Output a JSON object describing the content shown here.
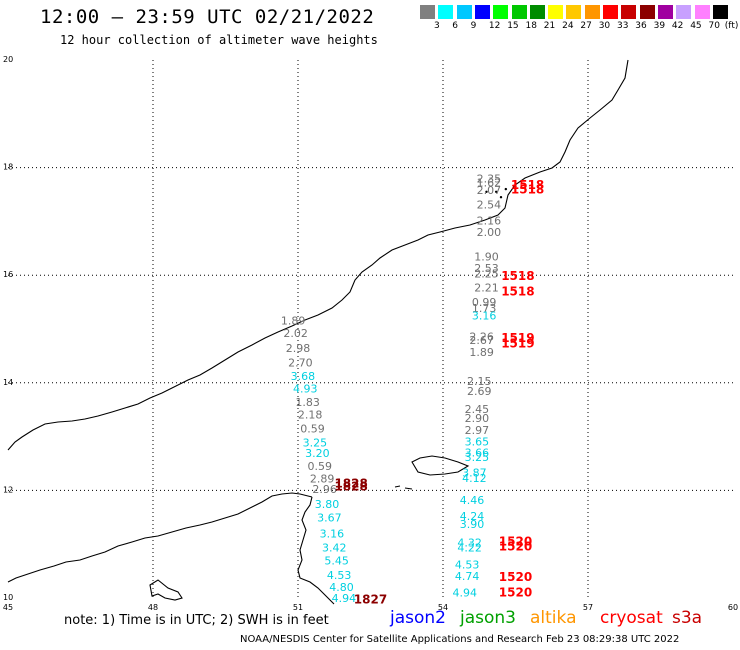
{
  "header": {
    "title": "12:00 — 23:59 UTC 02/21/2022",
    "subtitle": "12 hour collection of altimeter wave heights"
  },
  "legend": {
    "unit": "(ft)",
    "colors": [
      "#808080",
      "#00ffff",
      "#00c8ff",
      "#0000ff",
      "#00ff00",
      "#00c800",
      "#008c00",
      "#ffff00",
      "#ffc800",
      "#ff9600",
      "#ff0000",
      "#c80000",
      "#8c0000",
      "#a000a0",
      "#c8a0ff",
      "#ff80ff",
      "#000000"
    ],
    "labels": [
      "3",
      "6",
      "9",
      "12",
      "15",
      "18",
      "21",
      "24",
      "27",
      "30",
      "33",
      "36",
      "39",
      "42",
      "45",
      "70"
    ]
  },
  "map": {
    "x_ticks": [
      "45",
      "48",
      "51",
      "54",
      "57",
      "60"
    ],
    "y_ticks": [
      "10",
      "12",
      "14",
      "16",
      "18",
      "20"
    ],
    "observations": [
      {
        "v": "2.35",
        "c": "#707070",
        "lon": 54.95,
        "lat": 17.72
      },
      {
        "v": "1.62",
        "c": "#707070",
        "lon": 54.95,
        "lat": 17.65
      },
      {
        "v": "2.07",
        "c": "#707070",
        "lon": 54.95,
        "lat": 17.51
      },
      {
        "v": "2.54",
        "c": "#707070",
        "lon": 54.95,
        "lat": 17.24
      },
      {
        "v": "2.16",
        "c": "#707070",
        "lon": 54.95,
        "lat": 16.94
      },
      {
        "v": "2.00",
        "c": "#707070",
        "lon": 54.95,
        "lat": 16.73
      },
      {
        "v": "1.90",
        "c": "#707070",
        "lon": 54.9,
        "lat": 16.27
      },
      {
        "v": "2.53",
        "c": "#707070",
        "lon": 54.9,
        "lat": 16.06
      },
      {
        "v": "2.25",
        "c": "#707070",
        "lon": 54.9,
        "lat": 15.96
      },
      {
        "v": "2.21",
        "c": "#707070",
        "lon": 54.9,
        "lat": 15.7
      },
      {
        "v": "0.99",
        "c": "#707070",
        "lon": 54.85,
        "lat": 15.43
      },
      {
        "v": "1.73",
        "c": "#707070",
        "lon": 54.85,
        "lat": 15.32
      },
      {
        "v": "3.16",
        "c": "#00d0e0",
        "lon": 54.85,
        "lat": 15.18
      },
      {
        "v": "2.26",
        "c": "#707070",
        "lon": 54.8,
        "lat": 14.79
      },
      {
        "v": "2.67",
        "c": "#707070",
        "lon": 54.8,
        "lat": 14.72
      },
      {
        "v": "1.89",
        "c": "#707070",
        "lon": 54.8,
        "lat": 14.5
      },
      {
        "v": "2.15",
        "c": "#707070",
        "lon": 54.75,
        "lat": 13.96
      },
      {
        "v": "2.69",
        "c": "#707070",
        "lon": 54.75,
        "lat": 13.77
      },
      {
        "v": "2.45",
        "c": "#707070",
        "lon": 54.7,
        "lat": 13.44
      },
      {
        "v": "2.90",
        "c": "#707070",
        "lon": 54.7,
        "lat": 13.27
      },
      {
        "v": "2.97",
        "c": "#707070",
        "lon": 54.7,
        "lat": 13.05
      },
      {
        "v": "3.65",
        "c": "#00d0e0",
        "lon": 54.7,
        "lat": 12.83
      },
      {
        "v": "3.66",
        "c": "#00d0e0",
        "lon": 54.7,
        "lat": 12.63
      },
      {
        "v": "3.25",
        "c": "#00d0e0",
        "lon": 54.7,
        "lat": 12.55
      },
      {
        "v": "3.87",
        "c": "#00d0e0",
        "lon": 54.65,
        "lat": 12.26
      },
      {
        "v": "4.12",
        "c": "#00d0e0",
        "lon": 54.65,
        "lat": 12.16
      },
      {
        "v": "4.46",
        "c": "#00d0e0",
        "lon": 54.6,
        "lat": 11.75
      },
      {
        "v": "4.24",
        "c": "#00d0e0",
        "lon": 54.6,
        "lat": 11.45
      },
      {
        "v": "3.90",
        "c": "#00d0e0",
        "lon": 54.6,
        "lat": 11.3
      },
      {
        "v": "4.32",
        "c": "#00d0e0",
        "lon": 54.55,
        "lat": 10.96
      },
      {
        "v": "4.22",
        "c": "#00d0e0",
        "lon": 54.55,
        "lat": 10.86
      },
      {
        "v": "4.53",
        "c": "#00d0e0",
        "lon": 54.5,
        "lat": 10.55
      },
      {
        "v": "4.74",
        "c": "#00d0e0",
        "lon": 54.5,
        "lat": 10.33
      },
      {
        "v": "4.94",
        "c": "#00d0e0",
        "lon": 54.45,
        "lat": 10.03
      },
      {
        "v": "1.89",
        "c": "#707070",
        "lon": 50.9,
        "lat": 15.08
      },
      {
        "v": "2.02",
        "c": "#707070",
        "lon": 50.95,
        "lat": 14.85
      },
      {
        "v": "2.98",
        "c": "#707070",
        "lon": 51.0,
        "lat": 14.57
      },
      {
        "v": "2.70",
        "c": "#707070",
        "lon": 51.05,
        "lat": 14.3
      },
      {
        "v": "3.68",
        "c": "#00d0e0",
        "lon": 51.1,
        "lat": 14.05
      },
      {
        "v": "4.93",
        "c": "#00d0e0",
        "lon": 51.15,
        "lat": 13.82
      },
      {
        "v": "1.83",
        "c": "#707070",
        "lon": 51.2,
        "lat": 13.57
      },
      {
        "v": "2.18",
        "c": "#707070",
        "lon": 51.25,
        "lat": 13.34
      },
      {
        "v": "0.59",
        "c": "#707070",
        "lon": 51.3,
        "lat": 13.08
      },
      {
        "v": "3.25",
        "c": "#00d0e0",
        "lon": 51.35,
        "lat": 12.82
      },
      {
        "v": "3.20",
        "c": "#00d0e0",
        "lon": 51.4,
        "lat": 12.62
      },
      {
        "v": "0.59",
        "c": "#707070",
        "lon": 51.45,
        "lat": 12.38
      },
      {
        "v": "2.89",
        "c": "#707070",
        "lon": 51.5,
        "lat": 12.15
      },
      {
        "v": "2.96",
        "c": "#707070",
        "lon": 51.55,
        "lat": 11.95
      },
      {
        "v": "3.80",
        "c": "#00d0e0",
        "lon": 51.6,
        "lat": 11.67
      },
      {
        "v": "3.67",
        "c": "#00d0e0",
        "lon": 51.65,
        "lat": 11.42
      },
      {
        "v": "3.16",
        "c": "#00d0e0",
        "lon": 51.7,
        "lat": 11.12
      },
      {
        "v": "3.42",
        "c": "#00d0e0",
        "lon": 51.75,
        "lat": 10.86
      },
      {
        "v": "5.45",
        "c": "#00d0e0",
        "lon": 51.8,
        "lat": 10.62
      },
      {
        "v": "4.53",
        "c": "#00d0e0",
        "lon": 51.85,
        "lat": 10.35
      },
      {
        "v": "4.80",
        "c": "#00d0e0",
        "lon": 51.9,
        "lat": 10.13
      },
      {
        "v": "4.94",
        "c": "#00d0e0",
        "lon": 51.95,
        "lat": 9.93
      }
    ],
    "passes": [
      {
        "t": "1518",
        "c": "#ff0000",
        "lon": 55.75,
        "lat": 17.6
      },
      {
        "t": "1518",
        "c": "#ff0000",
        "lon": 55.75,
        "lat": 17.52
      },
      {
        "t": "1518",
        "c": "#ff0000",
        "lon": 55.55,
        "lat": 15.91
      },
      {
        "t": "1518",
        "c": "#ff0000",
        "lon": 55.55,
        "lat": 15.62
      },
      {
        "t": "1519",
        "c": "#ff0000",
        "lon": 55.55,
        "lat": 14.76
      },
      {
        "t": "1519",
        "c": "#ff0000",
        "lon": 55.55,
        "lat": 14.66
      },
      {
        "t": "1828",
        "c": "#8c0000",
        "lon": 52.1,
        "lat": 12.05
      },
      {
        "t": "1828",
        "c": "#8c0000",
        "lon": 52.1,
        "lat": 12.0
      },
      {
        "t": "1827",
        "c": "#8c0000",
        "lon": 52.5,
        "lat": 9.9
      },
      {
        "t": "1520",
        "c": "#ff0000",
        "lon": 55.5,
        "lat": 10.98
      },
      {
        "t": "1520",
        "c": "#ff0000",
        "lon": 55.5,
        "lat": 10.88
      },
      {
        "t": "1520",
        "c": "#ff0000",
        "lon": 55.5,
        "lat": 10.32
      },
      {
        "t": "1520",
        "c": "#ff0000",
        "lon": 55.5,
        "lat": 10.03
      }
    ]
  },
  "footer": {
    "note": "note: 1) Time is in UTC; 2) SWH is in feet",
    "satellites": [
      {
        "name": "jason2",
        "color": "#0000ff"
      },
      {
        "name": "jason3",
        "color": "#00a000"
      },
      {
        "name": "altika",
        "color": "#ff9600"
      },
      {
        "name": "cryosat",
        "color": "#ff0000"
      },
      {
        "name": "s3a",
        "color": "#c80000"
      }
    ],
    "credit": "NOAA/NESDIS Center for Satellite Applications and Research   Feb 23 08:29:38 UTC 2022"
  }
}
